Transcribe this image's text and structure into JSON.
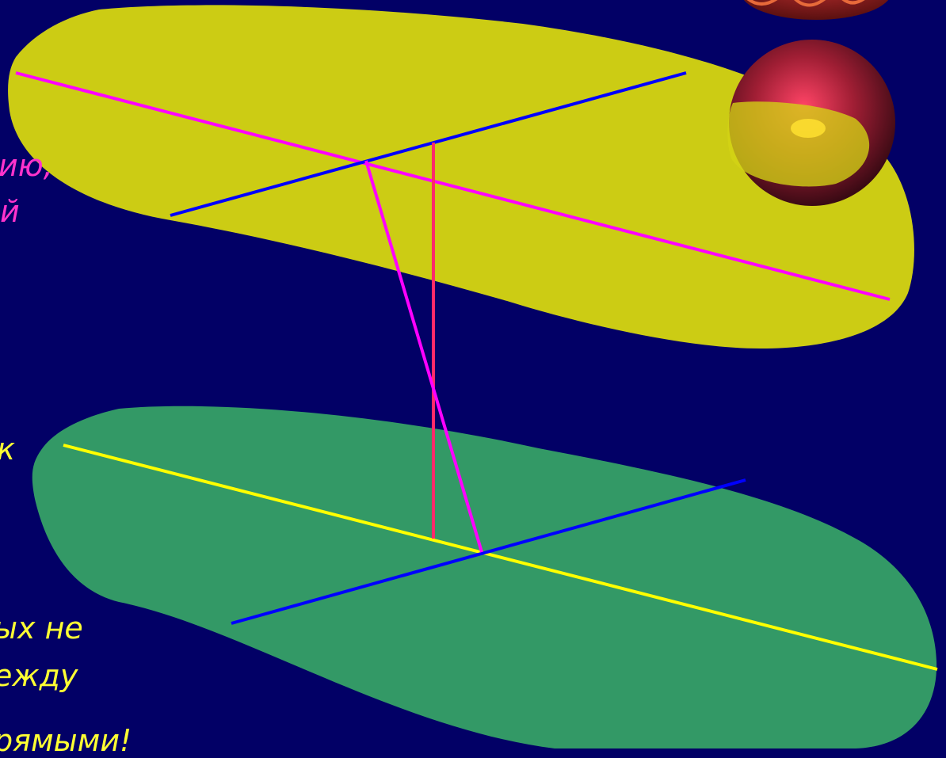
{
  "text_fragments": {
    "upper_line1": "ию,",
    "upper_line2": "й",
    "middle": "к",
    "lower_line1": "ых не",
    "lower_line2": "ежду",
    "lower_line3": "рямыми!"
  },
  "colors": {
    "background": "#020066",
    "upper_plane": "#cccc14",
    "lower_plane": "#339966",
    "magenta_line": "#ff00ff",
    "blue_line": "#0000ff",
    "yellow_line": "#ffff00",
    "perpendicular": "#ff2a6a",
    "upper_text": "#ff33cc",
    "lower_text": "#ffff33"
  }
}
